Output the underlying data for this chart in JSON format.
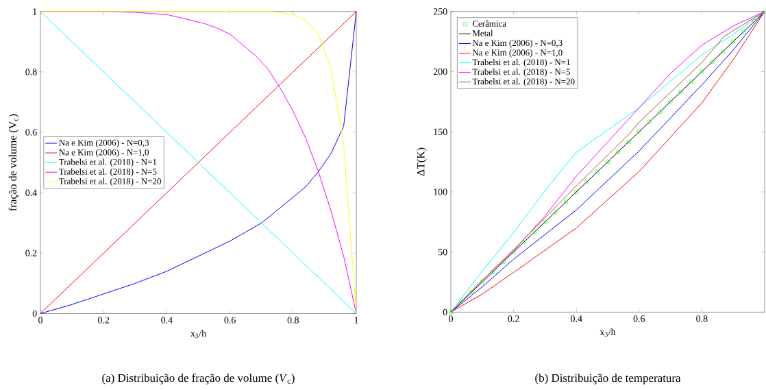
{
  "chart_data": [
    {
      "type": "line",
      "xlabel": "x$_{3}$/h",
      "ylabel": "fração de volume (V$_{c}$)",
      "xlim": [
        0,
        1
      ],
      "ylim": [
        0,
        1
      ],
      "xticks": [
        0,
        0.2,
        0.4,
        0.6,
        0.8,
        1
      ],
      "yticks": [
        0,
        0.2,
        0.4,
        0.6,
        0.8,
        1
      ],
      "legend": "left",
      "annotations": [
        "(a) Distribuição de fração de volume (*V*$_{c}$)"
      ],
      "series": [
        {
          "name": "Na e Kim (2006) - N=0,3",
          "color": "#0000ff",
          "x": [
            0,
            0.1,
            0.2,
            0.3,
            0.4,
            0.5,
            0.6,
            0.7,
            0.8,
            0.84,
            0.88,
            0.92,
            0.96,
            1
          ],
          "values": [
            0,
            0.03,
            0.065,
            0.1,
            0.14,
            0.19,
            0.24,
            0.3,
            0.385,
            0.42,
            0.47,
            0.53,
            0.62,
            1
          ]
        },
        {
          "name": "Na e Kim (2006) - N=1,0",
          "color": "#ff0000",
          "x": [
            0,
            1
          ],
          "values": [
            0,
            1
          ]
        },
        {
          "name": "Trabelsi et al. (2018) - N=1",
          "color": "#00ffff",
          "x": [
            0,
            1
          ],
          "values": [
            1,
            0
          ]
        },
        {
          "name": "Trabelsi et al. (2018) - N=5",
          "color": "#ff00ff",
          "x": [
            0,
            0.2,
            0.3,
            0.4,
            0.44,
            0.48,
            0.52,
            0.56,
            0.6,
            0.64,
            0.68,
            0.72,
            0.76,
            0.8,
            0.84,
            0.88,
            0.92,
            0.96,
            1
          ],
          "values": [
            1,
            1,
            0.997,
            0.99,
            0.98,
            0.97,
            0.96,
            0.945,
            0.925,
            0.89,
            0.855,
            0.81,
            0.745,
            0.67,
            0.58,
            0.47,
            0.34,
            0.19,
            0
          ]
        },
        {
          "name": "Trabelsi et al. (2018) - N=20",
          "color": "#ffff00",
          "x": [
            0,
            0.72,
            0.76,
            0.8,
            0.84,
            0.88,
            0.92,
            0.96,
            1
          ],
          "values": [
            1,
            1,
            0.997,
            0.99,
            0.97,
            0.925,
            0.81,
            0.56,
            0
          ]
        }
      ]
    },
    {
      "type": "line",
      "xlabel": "x$_{3}$/h",
      "ylabel": "ΔT(K)",
      "xlim": [
        0,
        1
      ],
      "ylim": [
        0,
        250
      ],
      "xticks": [
        0,
        0.2,
        0.4,
        0.6,
        0.8
      ],
      "yticks": [
        0,
        50,
        100,
        150,
        200,
        250
      ],
      "legend": "top left",
      "annotations": [
        "(b) Distribuição de temperatura"
      ],
      "series": [
        {
          "name": "Cerâmica",
          "type": "scatter",
          "marker": "square",
          "color": "#00ff00",
          "x": [
            0,
            0.033,
            0.067,
            0.1,
            0.133,
            0.167,
            0.2,
            0.233,
            0.267,
            0.3,
            0.333,
            0.367,
            0.4,
            0.433,
            0.467,
            0.5,
            0.533,
            0.567,
            0.6,
            0.633,
            0.667,
            0.7,
            0.733,
            0.767,
            0.8,
            0.833,
            0.867,
            0.9,
            0.933,
            0.967,
            1
          ],
          "values": [
            0,
            8.3,
            16.7,
            25,
            33.3,
            41.7,
            50,
            58.3,
            66.7,
            75,
            83.3,
            91.7,
            100,
            108.3,
            116.7,
            125,
            133.3,
            141.7,
            150,
            158.3,
            166.7,
            175,
            183.3,
            191.7,
            200,
            208.3,
            216.7,
            225,
            233.3,
            241.7,
            250
          ]
        },
        {
          "name": "Metal",
          "color": "#000000",
          "x": [
            0,
            1
          ],
          "values": [
            0,
            250
          ]
        },
        {
          "name": "Na e Kim (2006) - N=0,3",
          "color": "#0000ff",
          "x": [
            0,
            0.1,
            0.2,
            0.4,
            0.6,
            0.8,
            0.9,
            1
          ],
          "values": [
            0,
            21,
            44,
            85,
            134,
            189,
            218,
            250
          ]
        },
        {
          "name": "Na e Kim (2006) - N=1,0",
          "color": "#ff0000",
          "x": [
            0,
            0.1,
            0.2,
            0.4,
            0.6,
            0.8,
            0.9,
            1
          ],
          "values": [
            0,
            15,
            33,
            70,
            117,
            174,
            210,
            250
          ]
        },
        {
          "name": "Trabelsi et al. (2018) - N=1",
          "color": "#00ffff",
          "x": [
            0,
            0.1,
            0.2,
            0.3,
            0.4,
            0.6,
            0.8,
            0.9,
            1
          ],
          "values": [
            0,
            34,
            66,
            101,
            133,
            170,
            214,
            231,
            250
          ]
        },
        {
          "name": "Trabelsi et al. (2018) - N=5",
          "color": "#ff00ff",
          "x": [
            0,
            0.1,
            0.2,
            0.3,
            0.4,
            0.5,
            0.6,
            0.7,
            0.8,
            0.9,
            1
          ],
          "values": [
            0,
            26.5,
            51,
            80,
            113,
            141.5,
            170,
            198.5,
            222,
            238,
            250
          ]
        },
        {
          "name": "Trabelsi et al. (2018) - N=20",
          "color": "#b5552c",
          "x": [
            0,
            0.1,
            0.2,
            0.4,
            0.57,
            0.6,
            0.8,
            0.87,
            0.9,
            1
          ],
          "values": [
            0,
            26.5,
            52,
            105,
            148.6,
            158,
            207.6,
            229,
            234,
            250
          ]
        }
      ]
    }
  ]
}
